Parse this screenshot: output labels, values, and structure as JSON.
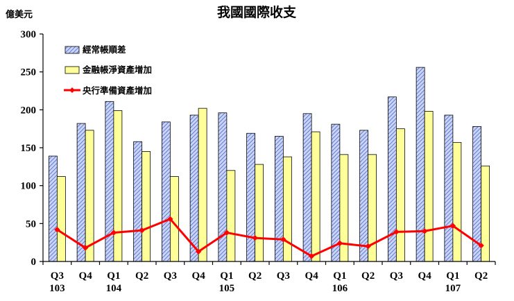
{
  "colors": {
    "current_account_fill": "#c9d4f7",
    "current_account_hatch": "#4a63c8",
    "financial_fill": "#ffff99",
    "reserve_line": "#ff0000",
    "axis": "#000000"
  },
  "chart_data": {
    "type": "bar",
    "title": "我國國際收支",
    "ylabel": "億美元",
    "xlabel": "",
    "ylim": [
      0,
      300
    ],
    "yticks": [
      "0",
      "50",
      "100",
      "150",
      "200",
      "250",
      "300"
    ],
    "grid": false,
    "legend_position": "top-left",
    "categories": [
      "Q3",
      "Q4",
      "Q1",
      "Q2",
      "Q3",
      "Q4",
      "Q1",
      "Q2",
      "Q3",
      "Q4",
      "Q1",
      "Q2",
      "Q3",
      "Q4",
      "Q1",
      "Q2"
    ],
    "year_labels": [
      "103",
      "",
      "104",
      "",
      "",
      "",
      "105",
      "",
      "",
      "",
      "106",
      "",
      "",
      "",
      "107",
      ""
    ],
    "series": [
      {
        "name": "經常帳順差",
        "type": "bar",
        "values": [
          139,
          182,
          211,
          158,
          184,
          193,
          196,
          169,
          165,
          195,
          181,
          173,
          217,
          256,
          193,
          178
        ]
      },
      {
        "name": "金融帳淨資產增加",
        "type": "bar",
        "values": [
          112,
          173,
          199,
          145,
          112,
          202,
          120,
          128,
          138,
          171,
          141,
          141,
          175,
          198,
          157,
          126
        ]
      },
      {
        "name": "央行準備資產增加",
        "type": "line",
        "values": [
          42,
          18,
          38,
          41,
          56,
          13,
          38,
          31,
          29,
          7,
          24,
          20,
          39,
          40,
          47,
          21
        ]
      }
    ]
  }
}
